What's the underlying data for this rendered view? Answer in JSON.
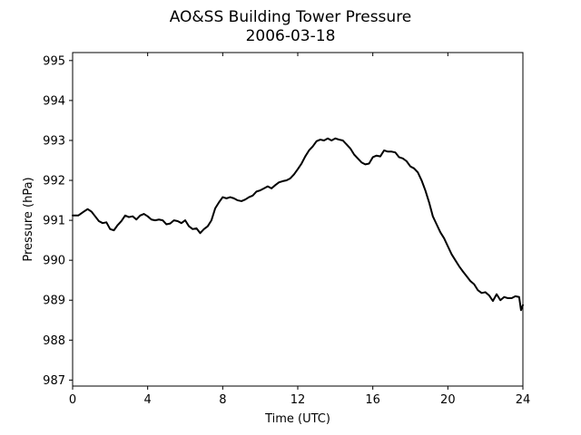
{
  "chart_data": {
    "type": "line",
    "title": "AO&SS Building Tower Pressure",
    "subtitle": "2006-03-18",
    "xlabel": "Time (UTC)",
    "ylabel": "Pressure (hPa)",
    "xlim": [
      0,
      24
    ],
    "ylim": [
      986.85,
      995.2
    ],
    "x_ticks": [
      0,
      4,
      8,
      12,
      16,
      20,
      24
    ],
    "x_tick_labels": [
      "0",
      "4",
      "8",
      "12",
      "16",
      "20",
      "24"
    ],
    "y_ticks": [
      987,
      988,
      989,
      990,
      991,
      992,
      993,
      994,
      995
    ],
    "y_tick_labels": [
      "987",
      "988",
      "989",
      "990",
      "991",
      "992",
      "993",
      "994",
      "995"
    ],
    "grid": false,
    "line_color": "#000000",
    "series": [
      {
        "x": [
          0,
          0.3,
          0.6,
          0.8,
          1.0,
          1.2,
          1.4,
          1.6,
          1.8,
          2.0,
          2.2,
          2.4,
          2.6,
          2.8,
          3.0,
          3.2,
          3.4,
          3.6,
          3.8,
          4.0,
          4.2,
          4.4,
          4.6,
          4.8,
          5.0,
          5.2,
          5.4,
          5.6,
          5.8,
          6.0,
          6.2,
          6.4,
          6.6,
          6.8,
          7.0,
          7.2,
          7.4,
          7.6,
          7.8,
          8.0,
          8.2,
          8.4,
          8.6,
          8.8,
          9.0,
          9.2,
          9.4,
          9.6,
          9.8,
          10.0,
          10.2,
          10.4,
          10.6,
          10.8,
          11.0,
          11.2,
          11.4,
          11.6,
          11.8,
          12.0,
          12.2,
          12.4,
          12.6,
          12.8,
          13.0,
          13.2,
          13.4,
          13.6,
          13.8,
          14.0,
          14.2,
          14.4,
          14.6,
          14.8,
          15.0,
          15.2,
          15.4,
          15.6,
          15.8,
          16.0,
          16.2,
          16.4,
          16.6,
          16.8,
          17.0,
          17.2,
          17.4,
          17.6,
          17.8,
          18.0,
          18.2,
          18.4,
          18.6,
          18.8,
          19.0,
          19.2,
          19.4,
          19.6,
          19.8,
          20.0,
          20.2,
          20.4,
          20.6,
          20.8,
          21.0,
          21.2,
          21.4,
          21.6,
          21.8,
          22.0,
          22.2,
          22.4,
          22.6,
          22.8,
          23.0,
          23.2,
          23.4,
          23.6,
          23.8,
          23.9,
          24.0
        ],
        "y": [
          991.12,
          991.12,
          991.22,
          991.28,
          991.22,
          991.1,
          990.98,
          990.93,
          990.95,
          990.78,
          990.75,
          990.88,
          990.98,
          991.12,
          991.08,
          991.1,
          991.02,
          991.12,
          991.16,
          991.1,
          991.02,
          991.0,
          991.02,
          991.0,
          990.9,
          990.92,
          991.0,
          990.98,
          990.93,
          991.0,
          990.85,
          990.78,
          990.8,
          990.68,
          990.78,
          990.85,
          991.0,
          991.3,
          991.45,
          991.58,
          991.55,
          991.58,
          991.55,
          991.5,
          991.48,
          991.52,
          991.58,
          991.62,
          991.72,
          991.75,
          991.8,
          991.85,
          991.8,
          991.88,
          991.95,
          991.98,
          992.0,
          992.05,
          992.15,
          992.28,
          992.42,
          992.6,
          992.75,
          992.85,
          992.98,
          993.02,
          993.0,
          993.05,
          993.0,
          993.05,
          993.02,
          993.0,
          992.9,
          992.8,
          992.65,
          992.55,
          992.45,
          992.4,
          992.42,
          992.58,
          992.62,
          992.6,
          992.75,
          992.72,
          992.72,
          992.7,
          992.58,
          992.55,
          992.48,
          992.35,
          992.3,
          992.2,
          992.0,
          991.75,
          991.45,
          991.1,
          990.9,
          990.7,
          990.55,
          990.35,
          990.15,
          990.0,
          989.85,
          989.72,
          989.6,
          989.48,
          989.4,
          989.25,
          989.18,
          989.2,
          989.12,
          988.98,
          989.15,
          989.0,
          989.08,
          989.05,
          989.05,
          989.1,
          989.08,
          988.75,
          988.88
        ]
      }
    ]
  }
}
